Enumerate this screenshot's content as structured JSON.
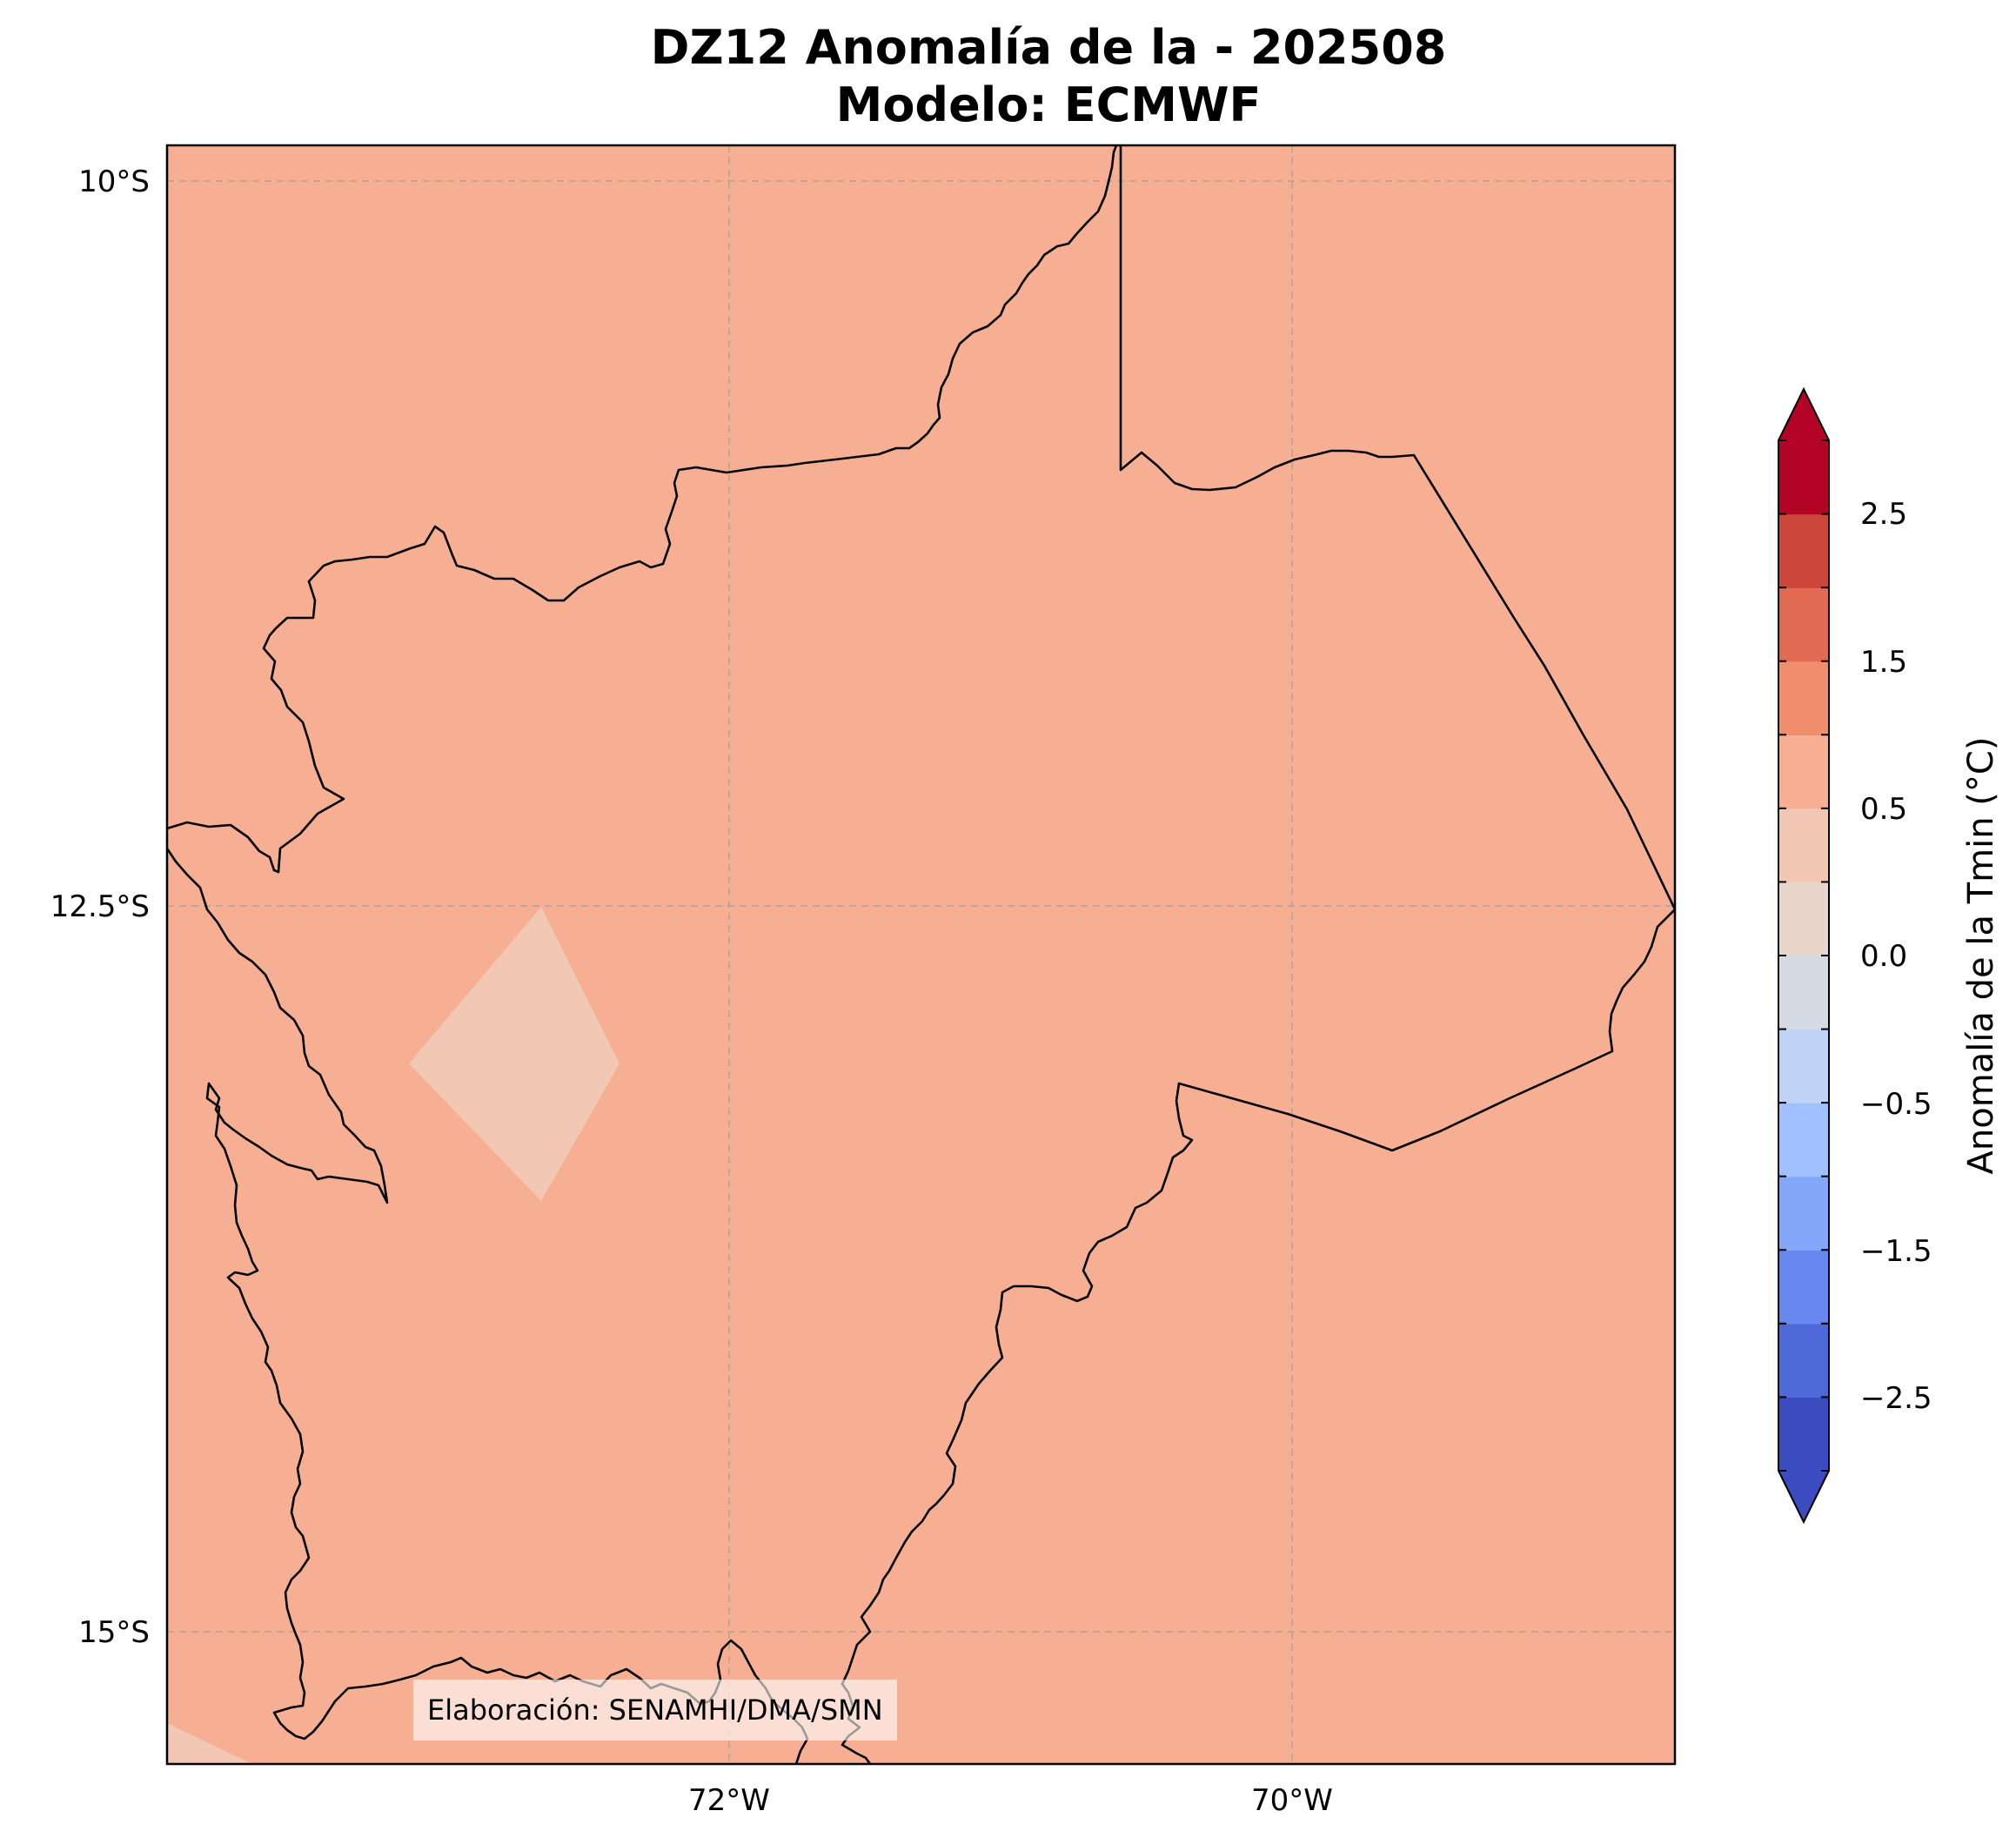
{
  "title": {
    "line1": "DZ12 Anomalía de la - 202508",
    "line2": "Modelo: ECMWF"
  },
  "map": {
    "background_color": "#f6af93",
    "lat_ticks": [
      {
        "label": "10°S"
      },
      {
        "label": "12.5°S"
      },
      {
        "label": "15°S"
      }
    ],
    "lon_ticks": [
      {
        "label": "72°W"
      },
      {
        "label": "70°W"
      }
    ],
    "attribution": "Elaboración: SENAMHI/DMA/SMN"
  },
  "colorbar": {
    "label": "Anomalía de la Tmin (°C)",
    "min_color": "#3b4cc0",
    "max_color": "#b40426",
    "level_colors": [
      "#3b4cc0",
      "#4f69d9",
      "#6788ee",
      "#84a7fc",
      "#a1c0ff",
      "#bfd3f6",
      "#d5dbe5",
      "#e8d6cc",
      "#f2c7b4",
      "#f6af93",
      "#ef8d6c",
      "#e26952",
      "#cd453a",
      "#b40426"
    ],
    "tick_labels": [
      "−2.5",
      "−1.5",
      "−0.5",
      "0.0",
      "0.5",
      "1.5",
      "2.5"
    ]
  }
}
